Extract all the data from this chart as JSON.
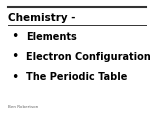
{
  "title": "Chemistry -",
  "bullet_items": [
    "Elements",
    "Electron Configurations",
    "The Periodic Table"
  ],
  "author": "Ben Robertson",
  "bg_color": "#ffffff",
  "title_color": "#000000",
  "bullet_color": "#000000",
  "author_color": "#666666",
  "line_color": "#333333",
  "title_fontsize": 7.5,
  "bullet_fontsize": 7.0,
  "author_fontsize": 3.0,
  "figsize": [
    1.5,
    1.15
  ],
  "dpi": 100
}
